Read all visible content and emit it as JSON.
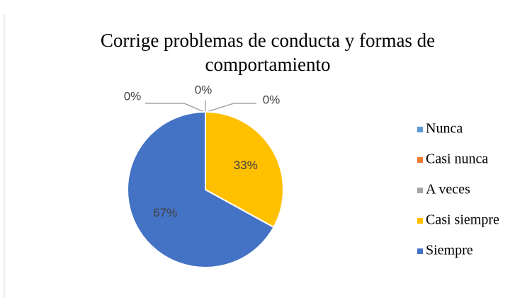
{
  "chart_data": {
    "type": "pie",
    "title": "Corrige problemas de conducta y formas de comportamiento",
    "categories": [
      "Nunca",
      "Casi nunca",
      "A veces",
      "Casi siempre",
      "Siempre"
    ],
    "values": [
      0,
      0,
      0,
      33,
      67
    ],
    "value_labels": [
      "0%",
      "0%",
      "0%",
      "33%",
      "67%"
    ],
    "colors": [
      "#5b9bd5",
      "#ed7d31",
      "#a5a5a5",
      "#ffc000",
      "#4472c4"
    ],
    "legend": "right"
  }
}
